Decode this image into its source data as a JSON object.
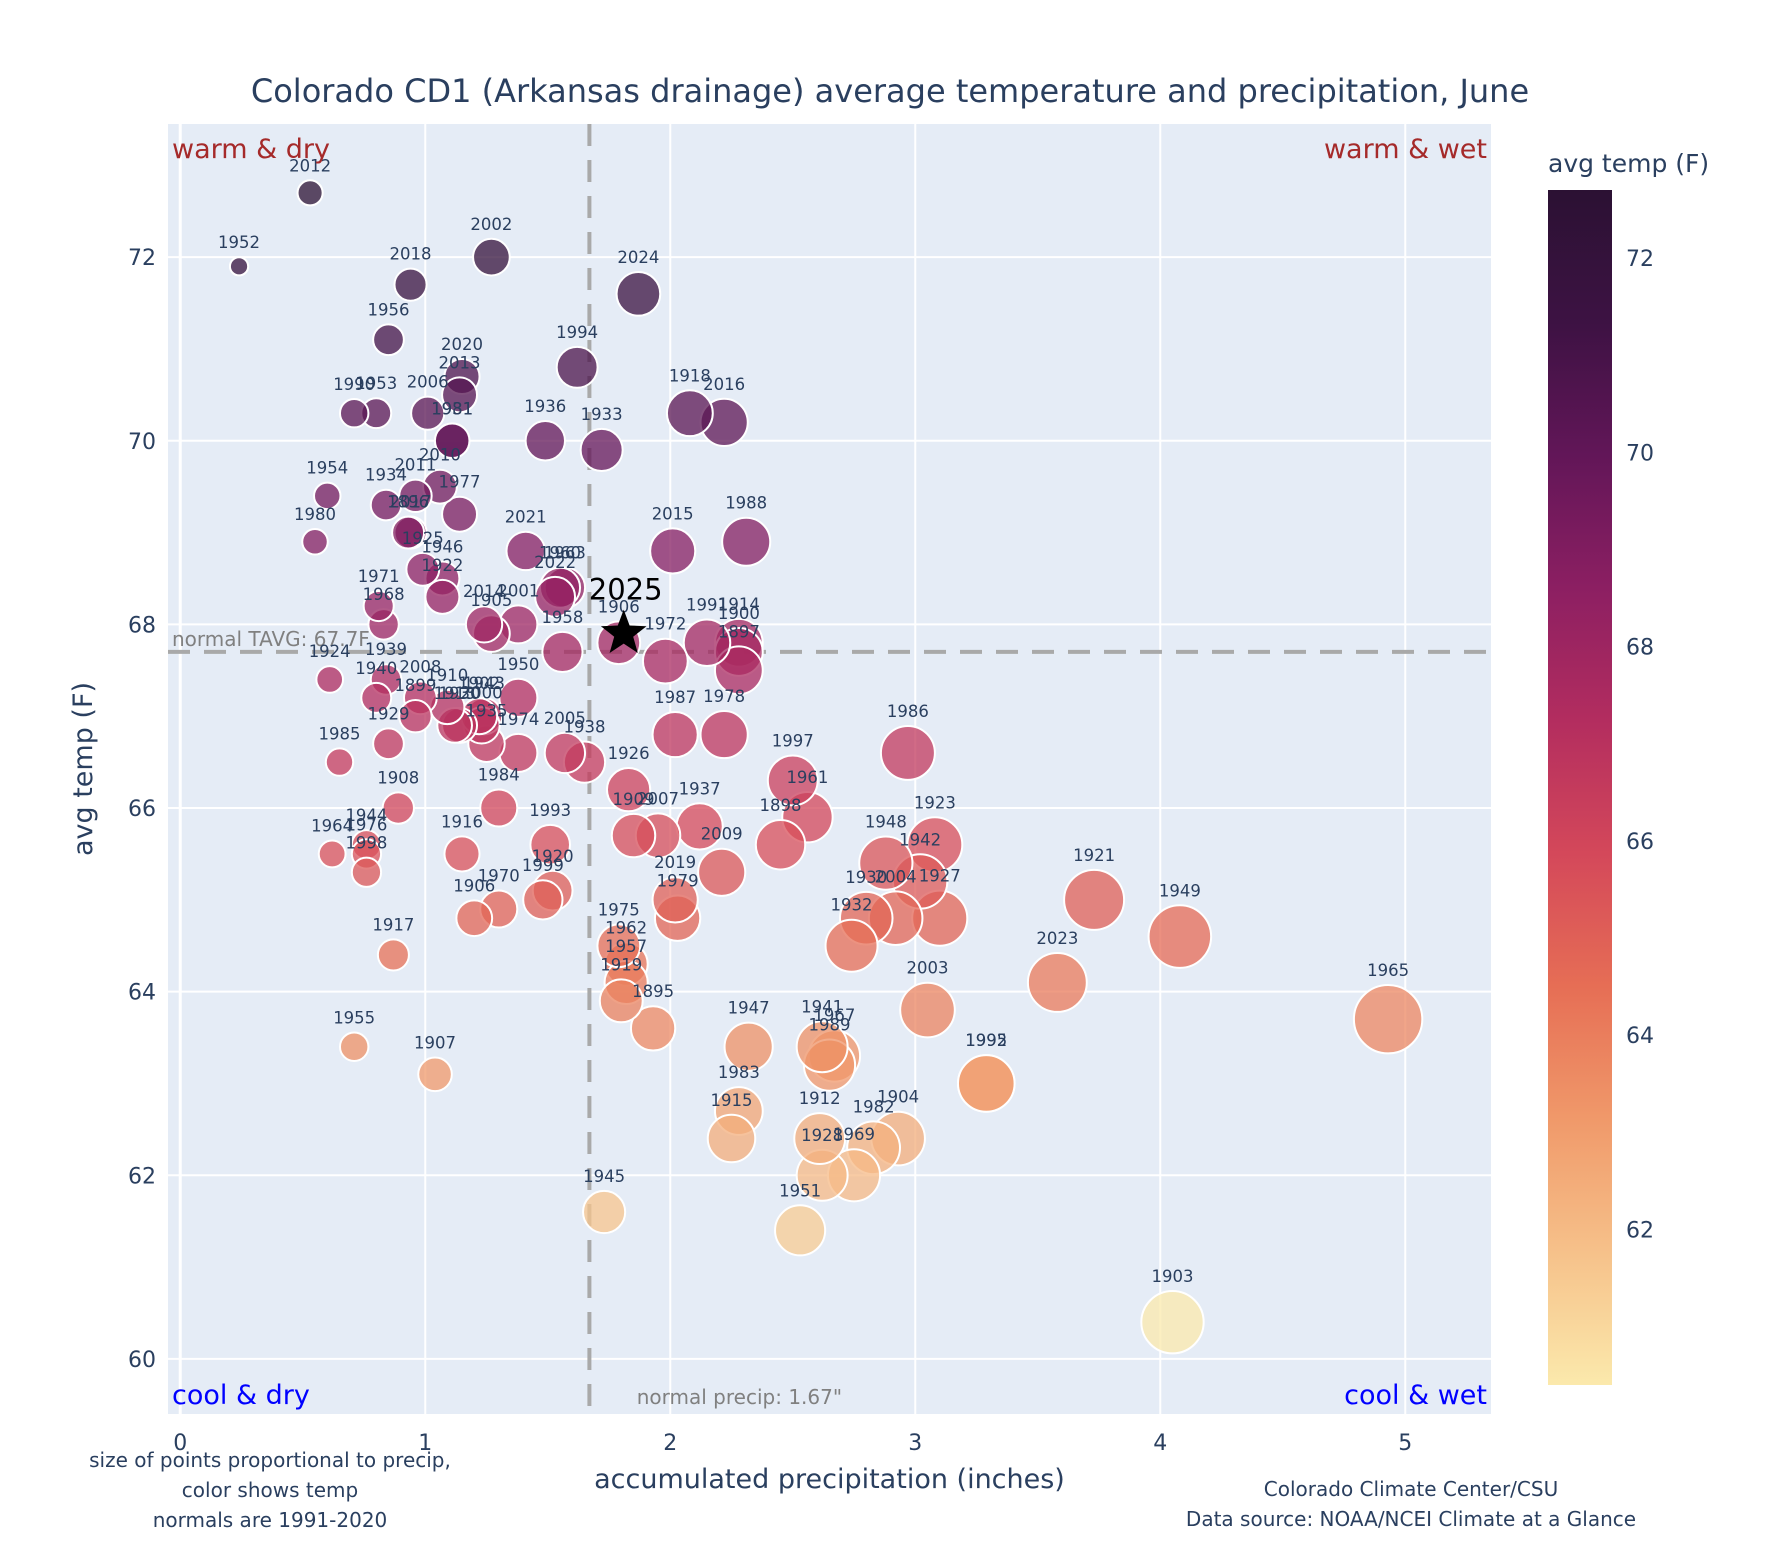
{
  "chart_data": {
    "type": "scatter",
    "title": "Colorado CD1 (Arkansas drainage) average temperature and precipitation, June",
    "xlabel": "accumulated precipitation (inches)",
    "ylabel": "avg temp (F)",
    "xlim": [
      -0.05,
      5.35
    ],
    "ylim": [
      59.4,
      73.45
    ],
    "xticks": [
      "0",
      "1",
      "2",
      "3",
      "4",
      "5"
    ],
    "xtick_values": [
      0,
      1,
      2,
      3,
      4,
      5
    ],
    "yticks": [
      "60",
      "62",
      "64",
      "66",
      "68",
      "70",
      "72"
    ],
    "ytick_values": [
      60,
      62,
      64,
      66,
      68,
      70,
      72
    ],
    "grid": true,
    "marker_size_encodes": "precipitation",
    "marker_color_encodes": "avg temp",
    "colorbar": {
      "title": "avg temp (F)",
      "range": [
        60.4,
        72.7
      ],
      "ticks": [
        "62",
        "64",
        "66",
        "68",
        "70",
        "72"
      ],
      "tick_values": [
        62,
        64,
        66,
        68,
        70,
        72
      ],
      "colors": [
        "#fbe9ac",
        "#f6c18a",
        "#f0996a",
        "#e66e55",
        "#d4485a",
        "#b32d5f",
        "#8c1f62",
        "#621658",
        "#3d1243",
        "#2b1133"
      ]
    },
    "quadrant_labels": {
      "top_left": "warm & dry",
      "top_right": "warm & wet",
      "bottom_left": "cool & dry",
      "bottom_right": "cool & wet"
    },
    "reference_lines": {
      "normal_temp": 67.7,
      "normal_temp_label": "normal TAVG: 67.7F",
      "normal_precip": 1.67,
      "normal_precip_label": "normal precip: 1.67\""
    },
    "highlight": {
      "year": "2025",
      "x": 1.81,
      "y": 67.9
    },
    "notes_left": [
      "size of points proportional to precip,",
      "color shows temp",
      "normals are 1991-2020"
    ],
    "notes_right": [
      "Colorado Climate Center/CSU",
      "Data source: NOAA/NCEI Climate at a Glance"
    ],
    "points": [
      {
        "year": "2012",
        "x": 0.53,
        "y": 72.7
      },
      {
        "year": "1952",
        "x": 0.24,
        "y": 71.9
      },
      {
        "year": "2002",
        "x": 1.27,
        "y": 72.0
      },
      {
        "year": "2018",
        "x": 0.94,
        "y": 71.7
      },
      {
        "year": "2024",
        "x": 1.87,
        "y": 71.6
      },
      {
        "year": "1956",
        "x": 0.85,
        "y": 71.1
      },
      {
        "year": "1994",
        "x": 1.62,
        "y": 70.8
      },
      {
        "year": "2020",
        "x": 1.15,
        "y": 70.7
      },
      {
        "year": "2013",
        "x": 1.14,
        "y": 70.5
      },
      {
        "year": "1990",
        "x": 0.71,
        "y": 70.3
      },
      {
        "year": "1953",
        "x": 0.8,
        "y": 70.3
      },
      {
        "year": "2006",
        "x": 1.01,
        "y": 70.3
      },
      {
        "year": "1918",
        "x": 2.08,
        "y": 70.3
      },
      {
        "year": "2016",
        "x": 2.22,
        "y": 70.2
      },
      {
        "year": "1931",
        "x": 1.11,
        "y": 70.0
      },
      {
        "year": "1981",
        "x": 1.11,
        "y": 70.0
      },
      {
        "year": "1936",
        "x": 1.49,
        "y": 70.0
      },
      {
        "year": "1933",
        "x": 1.72,
        "y": 69.9
      },
      {
        "year": "1954",
        "x": 0.6,
        "y": 69.4
      },
      {
        "year": "1934",
        "x": 0.84,
        "y": 69.3
      },
      {
        "year": "2011",
        "x": 0.96,
        "y": 69.4
      },
      {
        "year": "2010",
        "x": 1.06,
        "y": 69.5
      },
      {
        "year": "1977",
        "x": 1.14,
        "y": 69.2
      },
      {
        "year": "1896",
        "x": 0.93,
        "y": 69.0
      },
      {
        "year": "1980",
        "x": 0.55,
        "y": 68.9
      },
      {
        "year": "1988",
        "x": 2.31,
        "y": 68.9
      },
      {
        "year": "2015",
        "x": 2.01,
        "y": 68.8
      },
      {
        "year": "2021",
        "x": 1.41,
        "y": 68.8
      },
      {
        "year": "2017",
        "x": 0.94,
        "y": 69.0
      },
      {
        "year": "1925",
        "x": 0.99,
        "y": 68.6
      },
      {
        "year": "1946",
        "x": 1.07,
        "y": 68.5
      },
      {
        "year": "1922",
        "x": 1.07,
        "y": 68.3
      },
      {
        "year": "1960",
        "x": 1.55,
        "y": 68.4
      },
      {
        "year": "1963",
        "x": 1.57,
        "y": 68.4
      },
      {
        "year": "2022",
        "x": 1.53,
        "y": 68.3
      },
      {
        "year": "1971",
        "x": 0.81,
        "y": 68.2
      },
      {
        "year": "1968",
        "x": 0.83,
        "y": 68.0
      },
      {
        "year": "2014",
        "x": 1.24,
        "y": 68.0
      },
      {
        "year": "2001",
        "x": 1.38,
        "y": 68.0
      },
      {
        "year": "1905",
        "x": 1.27,
        "y": 67.9
      },
      {
        "year": "1906",
        "x": 1.79,
        "y": 67.8
      },
      {
        "year": "1991",
        "x": 2.15,
        "y": 67.8
      },
      {
        "year": "1914",
        "x": 2.28,
        "y": 67.8
      },
      {
        "year": "1900",
        "x": 2.28,
        "y": 67.7
      },
      {
        "year": "1958",
        "x": 1.56,
        "y": 67.7
      },
      {
        "year": "1972",
        "x": 1.98,
        "y": 67.6
      },
      {
        "year": "1897",
        "x": 2.28,
        "y": 67.5
      },
      {
        "year": "1924",
        "x": 0.61,
        "y": 67.4
      },
      {
        "year": "1939",
        "x": 0.84,
        "y": 67.4
      },
      {
        "year": "1940",
        "x": 0.8,
        "y": 67.2
      },
      {
        "year": "2008",
        "x": 0.98,
        "y": 67.2
      },
      {
        "year": "1950",
        "x": 1.38,
        "y": 67.2
      },
      {
        "year": "1899",
        "x": 0.96,
        "y": 67.0
      },
      {
        "year": "1910",
        "x": 1.09,
        "y": 67.1
      },
      {
        "year": "1930",
        "x": 1.14,
        "y": 66.9
      },
      {
        "year": "1902",
        "x": 1.22,
        "y": 67.0
      },
      {
        "year": "2000",
        "x": 1.23,
        "y": 66.9
      },
      {
        "year": "1913",
        "x": 1.12,
        "y": 66.9
      },
      {
        "year": "1943",
        "x": 1.24,
        "y": 67.0
      },
      {
        "year": "1935",
        "x": 1.25,
        "y": 66.7
      },
      {
        "year": "1978",
        "x": 2.22,
        "y": 66.8
      },
      {
        "year": "1987",
        "x": 2.02,
        "y": 66.8
      },
      {
        "year": "1929",
        "x": 0.85,
        "y": 66.7
      },
      {
        "year": "1974",
        "x": 1.38,
        "y": 66.6
      },
      {
        "year": "2005",
        "x": 1.57,
        "y": 66.6
      },
      {
        "year": "1938",
        "x": 1.65,
        "y": 66.5
      },
      {
        "year": "1986",
        "x": 2.97,
        "y": 66.6
      },
      {
        "year": "1985",
        "x": 0.65,
        "y": 66.5
      },
      {
        "year": "1926",
        "x": 1.83,
        "y": 66.2
      },
      {
        "year": "1997",
        "x": 2.5,
        "y": 66.3
      },
      {
        "year": "1908",
        "x": 0.89,
        "y": 66.0
      },
      {
        "year": "1984",
        "x": 1.3,
        "y": 66.0
      },
      {
        "year": "1961",
        "x": 2.56,
        "y": 65.9
      },
      {
        "year": "1937",
        "x": 2.12,
        "y": 65.8
      },
      {
        "year": "1909",
        "x": 1.85,
        "y": 65.7
      },
      {
        "year": "2007",
        "x": 1.95,
        "y": 65.7
      },
      {
        "year": "1898",
        "x": 2.45,
        "y": 65.6
      },
      {
        "year": "1923",
        "x": 3.08,
        "y": 65.6
      },
      {
        "year": "1993",
        "x": 1.51,
        "y": 65.6
      },
      {
        "year": "1944",
        "x": 0.76,
        "y": 65.6
      },
      {
        "year": "1976",
        "x": 0.76,
        "y": 65.5
      },
      {
        "year": "1964",
        "x": 0.62,
        "y": 65.5
      },
      {
        "year": "1916",
        "x": 1.15,
        "y": 65.5
      },
      {
        "year": "1948",
        "x": 2.88,
        "y": 65.4
      },
      {
        "year": "1942",
        "x": 3.02,
        "y": 65.2
      },
      {
        "year": "1998",
        "x": 0.76,
        "y": 65.3
      },
      {
        "year": "2009",
        "x": 2.21,
        "y": 65.3
      },
      {
        "year": "1920",
        "x": 1.52,
        "y": 65.1
      },
      {
        "year": "1999",
        "x": 1.48,
        "y": 65.0
      },
      {
        "year": "2019",
        "x": 2.02,
        "y": 65.0
      },
      {
        "year": "1979",
        "x": 2.03,
        "y": 64.8
      },
      {
        "year": "1970",
        "x": 1.3,
        "y": 64.9
      },
      {
        "year": "1906b",
        "x": 1.2,
        "y": 64.8
      },
      {
        "year": "1930",
        "x": 2.8,
        "y": 64.8
      },
      {
        "year": "2004",
        "x": 2.92,
        "y": 64.8
      },
      {
        "year": "1927",
        "x": 3.1,
        "y": 64.8
      },
      {
        "year": "1932",
        "x": 2.74,
        "y": 64.5
      },
      {
        "year": "1921",
        "x": 3.73,
        "y": 65.0
      },
      {
        "year": "1949",
        "x": 4.08,
        "y": 64.6
      },
      {
        "year": "1975",
        "x": 1.79,
        "y": 64.5
      },
      {
        "year": "1962",
        "x": 1.82,
        "y": 64.3
      },
      {
        "year": "1957",
        "x": 1.82,
        "y": 64.1
      },
      {
        "year": "1919",
        "x": 1.8,
        "y": 63.9
      },
      {
        "year": "1917",
        "x": 0.87,
        "y": 64.4
      },
      {
        "year": "2023",
        "x": 3.58,
        "y": 64.1
      },
      {
        "year": "2003",
        "x": 3.05,
        "y": 63.8
      },
      {
        "year": "1965",
        "x": 4.93,
        "y": 63.7
      },
      {
        "year": "1895",
        "x": 1.93,
        "y": 63.6
      },
      {
        "year": "1947",
        "x": 2.32,
        "y": 63.4
      },
      {
        "year": "1941",
        "x": 2.62,
        "y": 63.4
      },
      {
        "year": "1967",
        "x": 2.67,
        "y": 63.3
      },
      {
        "year": "1989",
        "x": 2.65,
        "y": 63.2
      },
      {
        "year": "1955",
        "x": 0.71,
        "y": 63.4
      },
      {
        "year": "1907",
        "x": 1.04,
        "y": 63.1
      },
      {
        "year": "1992",
        "x": 3.29,
        "y": 63.0
      },
      {
        "year": "1995",
        "x": 3.29,
        "y": 63.0
      },
      {
        "year": "1983",
        "x": 2.28,
        "y": 62.7
      },
      {
        "year": "1915",
        "x": 2.25,
        "y": 62.4
      },
      {
        "year": "1912",
        "x": 2.61,
        "y": 62.4
      },
      {
        "year": "1904",
        "x": 2.93,
        "y": 62.4
      },
      {
        "year": "1982",
        "x": 2.83,
        "y": 62.3
      },
      {
        "year": "1928",
        "x": 2.62,
        "y": 62.0
      },
      {
        "year": "1969",
        "x": 2.75,
        "y": 62.0
      },
      {
        "year": "1945",
        "x": 1.73,
        "y": 61.6
      },
      {
        "year": "1951",
        "x": 2.53,
        "y": 61.4
      },
      {
        "year": "1903",
        "x": 4.05,
        "y": 60.4
      }
    ]
  }
}
